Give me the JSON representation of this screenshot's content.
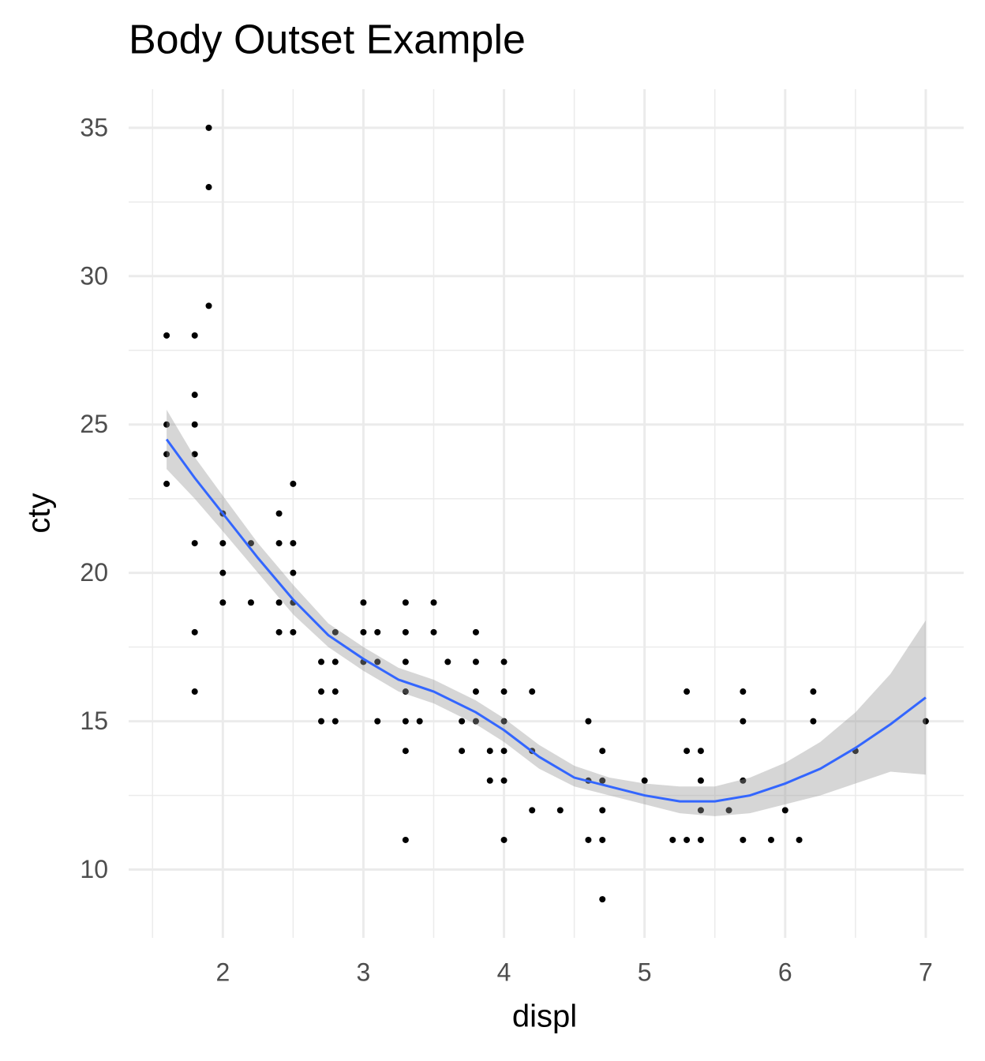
{
  "chart_data": {
    "type": "scatter",
    "title": "Body Outset Example",
    "x_label": "displ",
    "y_label": "cty",
    "color": "#000000",
    "x": [
      1.6,
      1.6,
      1.6,
      1.6,
      1.8,
      1.8,
      1.8,
      1.8,
      1.8,
      1.8,
      1.8,
      1.9,
      1.9,
      1.9,
      2.0,
      2.0,
      2.0,
      2.0,
      2.2,
      2.2,
      2.4,
      2.4,
      2.4,
      2.4,
      2.5,
      2.5,
      2.5,
      2.5,
      2.5,
      2.7,
      2.7,
      2.7,
      2.8,
      2.8,
      2.8,
      2.8,
      3.0,
      3.0,
      3.0,
      3.1,
      3.1,
      3.1,
      3.3,
      3.3,
      3.3,
      3.3,
      3.3,
      3.3,
      3.3,
      3.4,
      3.5,
      3.5,
      3.6,
      3.7,
      3.7,
      3.8,
      3.8,
      3.8,
      3.8,
      3.9,
      3.9,
      4.0,
      4.0,
      4.0,
      4.0,
      4.0,
      4.0,
      4.2,
      4.2,
      4.2,
      4.4,
      4.6,
      4.6,
      4.6,
      4.7,
      4.7,
      4.7,
      4.7,
      4.7,
      5.0,
      5.2,
      5.3,
      5.3,
      5.3,
      5.4,
      5.4,
      5.4,
      5.4,
      5.6,
      5.7,
      5.7,
      5.7,
      5.7,
      5.9,
      6.0,
      6.1,
      6.2,
      6.2,
      6.5,
      7.0
    ],
    "values": [
      28,
      25,
      24,
      23,
      28,
      26,
      25,
      24,
      21,
      18,
      16,
      35,
      33,
      29,
      22,
      21,
      20,
      19,
      21,
      19,
      22,
      21,
      19,
      18,
      23,
      21,
      20,
      19,
      18,
      17,
      16,
      15,
      18,
      17,
      16,
      15,
      19,
      18,
      17,
      18,
      17,
      15,
      19,
      18,
      17,
      16,
      15,
      14,
      11,
      15,
      19,
      18,
      17,
      15,
      14,
      18,
      17,
      16,
      15,
      14,
      13,
      17,
      16,
      15,
      14,
      13,
      11,
      16,
      14,
      12,
      12,
      15,
      13,
      11,
      14,
      13,
      12,
      11,
      9,
      13,
      11,
      16,
      14,
      11,
      14,
      13,
      12,
      11,
      12,
      16,
      15,
      13,
      11,
      11,
      12,
      11,
      16,
      15,
      14,
      15
    ],
    "smooth": {
      "color": "#3366FF",
      "fill": "#999999",
      "x": [
        1.6,
        1.8,
        2.0,
        2.25,
        2.5,
        2.75,
        3.0,
        3.25,
        3.5,
        3.8,
        4.0,
        4.25,
        4.5,
        4.75,
        5.0,
        5.25,
        5.5,
        5.75,
        6.0,
        6.25,
        6.5,
        6.75,
        7.0
      ],
      "y": [
        24.5,
        23.2,
        22.0,
        20.5,
        19.1,
        17.9,
        17.1,
        16.4,
        16.0,
        15.3,
        14.7,
        13.8,
        13.1,
        12.8,
        12.5,
        12.3,
        12.3,
        12.5,
        12.9,
        13.4,
        14.1,
        14.9,
        15.8
      ],
      "ymin": [
        23.5,
        22.5,
        21.4,
        20.0,
        18.6,
        17.5,
        16.7,
        16.0,
        15.6,
        14.9,
        14.3,
        13.4,
        12.8,
        12.5,
        12.2,
        11.9,
        11.8,
        11.9,
        12.2,
        12.5,
        12.9,
        13.3,
        13.2
      ],
      "ymax": [
        25.5,
        23.9,
        22.6,
        21.0,
        19.6,
        18.3,
        17.5,
        16.8,
        16.4,
        15.7,
        15.1,
        14.2,
        13.5,
        13.1,
        12.9,
        12.8,
        12.8,
        13.1,
        13.6,
        14.3,
        15.3,
        16.6,
        18.4
      ]
    },
    "xlim": [
      1.33,
      7.27
    ],
    "ylim": [
      7.7,
      36.3
    ],
    "xticks": [
      2,
      3,
      4,
      5,
      6,
      7
    ],
    "yticks": [
      10,
      15,
      20,
      25,
      30,
      35
    ],
    "x_minor_ticks": [
      1.5,
      2.5,
      3.5,
      4.5,
      5.5,
      6.5
    ],
    "y_minor_ticks": [
      12.5,
      17.5,
      22.5,
      27.5,
      32.5
    ],
    "grid": true
  }
}
